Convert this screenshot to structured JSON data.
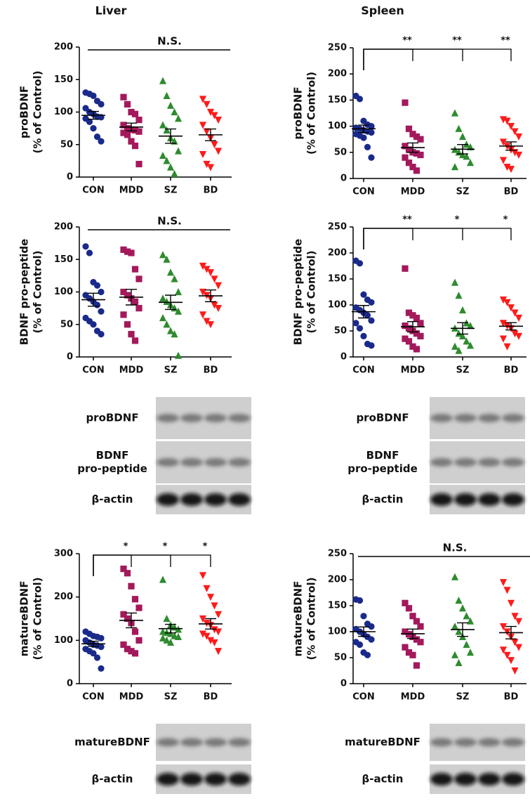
{
  "column_titles": [
    "Liver",
    "Spleen"
  ],
  "chart_data": [
    {
      "type": "dot",
      "ylabel": [
        "proBDNF",
        "(% of Control)"
      ],
      "categories": [
        "CON",
        "MDD",
        "SZ",
        "BD"
      ],
      "ylim": [
        0,
        200
      ],
      "yticks": [
        0,
        50,
        100,
        150,
        200
      ],
      "groups": [
        {
          "color": "#1a2a8a",
          "marker": "circle",
          "values": [
            130,
            128,
            125,
            117,
            112,
            106,
            100,
            97,
            93,
            92,
            90,
            85,
            75,
            62,
            55
          ],
          "mean": 95,
          "sem": 6
        },
        {
          "color": "#a3195b",
          "marker": "square",
          "values": [
            123,
            112,
            100,
            97,
            88,
            80,
            75,
            73,
            72,
            70,
            68,
            65,
            55,
            48,
            20
          ],
          "mean": 77,
          "sem": 6
        },
        {
          "color": "#2e8b2e",
          "marker": "triangle-up",
          "values": [
            148,
            125,
            110,
            100,
            90,
            80,
            72,
            60,
            55,
            40,
            33,
            25,
            15,
            5
          ],
          "mean": 63,
          "sem": 11
        },
        {
          "color": "#ff1a1a",
          "marker": "triangle-down",
          "values": [
            120,
            112,
            100,
            95,
            88,
            80,
            70,
            60,
            50,
            40,
            35,
            20,
            15
          ],
          "mean": 65,
          "sem": 9
        }
      ],
      "comparisons": [
        {
          "groups": [
            0,
            3
          ],
          "label": "N.S.",
          "style": "line"
        }
      ]
    },
    {
      "type": "dot",
      "ylabel": [
        "proBDNF",
        "(% of Control)"
      ],
      "categories": [
        "CON",
        "MDD",
        "SZ",
        "BD"
      ],
      "ylim": [
        0,
        250
      ],
      "yticks": [
        0,
        50,
        100,
        150,
        200,
        250
      ],
      "groups": [
        {
          "color": "#1a2a8a",
          "marker": "circle",
          "values": [
            158,
            152,
            110,
            103,
            100,
            97,
            95,
            92,
            90,
            88,
            85,
            82,
            78,
            60,
            40
          ],
          "mean": 95,
          "sem": 7
        },
        {
          "color": "#a3195b",
          "marker": "square",
          "values": [
            145,
            95,
            85,
            80,
            75,
            62,
            55,
            50,
            48,
            45,
            40,
            30,
            22,
            15
          ],
          "mean": 59,
          "sem": 9
        },
        {
          "color": "#2e8b2e",
          "marker": "triangle-up",
          "values": [
            125,
            95,
            80,
            65,
            60,
            55,
            50,
            45,
            42,
            30,
            22
          ],
          "mean": 56,
          "sem": 9
        },
        {
          "color": "#ff1a1a",
          "marker": "triangle-down",
          "values": [
            113,
            110,
            100,
            90,
            80,
            70,
            62,
            55,
            50,
            45,
            35,
            22,
            18
          ],
          "mean": 62,
          "sem": 8
        }
      ],
      "comparisons": [
        {
          "groups": [
            0,
            1
          ],
          "label": "**",
          "style": "bracket"
        },
        {
          "groups": [
            0,
            2
          ],
          "label": "**",
          "style": "bracket"
        },
        {
          "groups": [
            0,
            3
          ],
          "label": "**",
          "style": "bracket"
        }
      ]
    },
    {
      "type": "dot",
      "ylabel": [
        "BDNF pro-peptide",
        "(% of Control)"
      ],
      "categories": [
        "CON",
        "MDD",
        "SZ",
        "BD"
      ],
      "ylim": [
        0,
        200
      ],
      "yticks": [
        0,
        50,
        100,
        150,
        200
      ],
      "groups": [
        {
          "color": "#1a2a8a",
          "marker": "circle",
          "values": [
            170,
            160,
            115,
            110,
            100,
            95,
            90,
            85,
            80,
            70,
            60,
            55,
            50,
            40,
            35
          ],
          "mean": 88,
          "sem": 10
        },
        {
          "color": "#a3195b",
          "marker": "square",
          "values": [
            165,
            162,
            160,
            135,
            120,
            100,
            95,
            90,
            85,
            75,
            65,
            50,
            35,
            25
          ],
          "mean": 92,
          "sem": 12
        },
        {
          "color": "#2e8b2e",
          "marker": "triangle-up",
          "values": [
            157,
            150,
            130,
            120,
            100,
            90,
            85,
            80,
            75,
            70,
            60,
            50,
            40,
            35,
            2
          ],
          "mean": 84,
          "sem": 11
        },
        {
          "color": "#ff1a1a",
          "marker": "triangle-down",
          "values": [
            140,
            135,
            130,
            120,
            110,
            100,
            95,
            90,
            80,
            75,
            65,
            55,
            50
          ],
          "mean": 94,
          "sem": 9
        }
      ],
      "comparisons": [
        {
          "groups": [
            0,
            3
          ],
          "label": "N.S.",
          "style": "line"
        }
      ]
    },
    {
      "type": "dot",
      "ylabel": [
        "BDNF pro-peptide",
        "(% of Control)"
      ],
      "categories": [
        "CON",
        "MDD",
        "SZ",
        "BD"
      ],
      "ylim": [
        0,
        250
      ],
      "yticks": [
        0,
        50,
        100,
        150,
        200,
        250
      ],
      "groups": [
        {
          "color": "#1a2a8a",
          "marker": "circle",
          "values": [
            185,
            180,
            120,
            110,
            105,
            95,
            90,
            85,
            80,
            70,
            65,
            55,
            40,
            25,
            22
          ],
          "mean": 87,
          "sem": 12
        },
        {
          "color": "#a3195b",
          "marker": "square",
          "values": [
            170,
            85,
            80,
            75,
            65,
            60,
            55,
            50,
            45,
            40,
            35,
            30,
            20,
            15
          ],
          "mean": 58,
          "sem": 10
        },
        {
          "color": "#2e8b2e",
          "marker": "triangle-up",
          "values": [
            143,
            118,
            90,
            65,
            60,
            55,
            45,
            40,
            30,
            22,
            20,
            12
          ],
          "mean": 55,
          "sem": 11
        },
        {
          "color": "#ff1a1a",
          "marker": "triangle-down",
          "values": [
            110,
            105,
            95,
            85,
            75,
            65,
            60,
            55,
            45,
            40,
            35,
            20
          ],
          "mean": 59,
          "sem": 7
        }
      ],
      "comparisons": [
        {
          "groups": [
            0,
            1
          ],
          "label": "**",
          "style": "bracket"
        },
        {
          "groups": [
            0,
            2
          ],
          "label": "*",
          "style": "bracket"
        },
        {
          "groups": [
            0,
            3
          ],
          "label": "*",
          "style": "bracket"
        }
      ]
    },
    {
      "type": "dot",
      "ylabel": [
        "matureBDNF",
        "(% of Control)"
      ],
      "categories": [
        "CON",
        "MDD",
        "SZ",
        "BD"
      ],
      "ylim": [
        0,
        300
      ],
      "yticks": [
        0,
        100,
        200,
        300
      ],
      "groups": [
        {
          "color": "#1a2a8a",
          "marker": "circle",
          "values": [
            120,
            115,
            110,
            108,
            105,
            100,
            95,
            90,
            88,
            85,
            80,
            75,
            70,
            60,
            35
          ],
          "mean": 92,
          "sem": 6
        },
        {
          "color": "#a3195b",
          "marker": "square",
          "values": [
            265,
            255,
            225,
            195,
            175,
            160,
            150,
            140,
            120,
            100,
            90,
            80,
            75,
            70
          ],
          "mean": 146,
          "sem": 17
        },
        {
          "color": "#2e8b2e",
          "marker": "triangle-up",
          "values": [
            240,
            150,
            135,
            130,
            125,
            120,
            118,
            115,
            110,
            108,
            105,
            100,
            95
          ],
          "mean": 127,
          "sem": 10
        },
        {
          "color": "#ff1a1a",
          "marker": "triangle-down",
          "values": [
            250,
            220,
            200,
            180,
            160,
            150,
            140,
            135,
            125,
            120,
            115,
            110,
            100,
            95,
            75
          ],
          "mean": 138,
          "sem": 12
        }
      ],
      "comparisons": [
        {
          "groups": [
            0,
            1
          ],
          "label": "*",
          "style": "bracket"
        },
        {
          "groups": [
            0,
            2
          ],
          "label": "*",
          "style": "bracket"
        },
        {
          "groups": [
            0,
            3
          ],
          "label": "*",
          "style": "bracket"
        }
      ]
    },
    {
      "type": "dot",
      "ylabel": [
        "matureBDNF",
        "(% of Control)"
      ],
      "categories": [
        "CON",
        "MDD",
        "SZ",
        "BD"
      ],
      "ylim": [
        0,
        250
      ],
      "yticks": [
        0,
        50,
        100,
        150,
        200,
        250
      ],
      "groups": [
        {
          "color": "#1a2a8a",
          "marker": "circle",
          "values": [
            162,
            160,
            130,
            115,
            110,
            105,
            100,
            95,
            90,
            85,
            80,
            75,
            60,
            55
          ],
          "mean": 100,
          "sem": 9
        },
        {
          "color": "#a3195b",
          "marker": "square",
          "values": [
            155,
            145,
            130,
            120,
            110,
            100,
            95,
            90,
            85,
            80,
            70,
            60,
            55,
            35
          ],
          "mean": 96,
          "sem": 9
        },
        {
          "color": "#2e8b2e",
          "marker": "triangle-up",
          "values": [
            205,
            160,
            145,
            130,
            120,
            110,
            100,
            90,
            75,
            60,
            55,
            40
          ],
          "mean": 104,
          "sem": 13
        },
        {
          "color": "#ff1a1a",
          "marker": "triangle-down",
          "values": [
            195,
            180,
            155,
            130,
            120,
            110,
            100,
            90,
            80,
            70,
            65,
            55,
            45,
            25
          ],
          "mean": 98,
          "sem": 12
        }
      ],
      "comparisons": [
        {
          "groups": [
            0,
            3
          ],
          "label": "N.S.",
          "style": "line"
        }
      ]
    }
  ],
  "blots": [
    {
      "rows": [
        [
          "proBDNF"
        ],
        [
          "BDNF",
          "pro-peptide"
        ],
        [
          "β-actin"
        ]
      ]
    },
    {
      "rows": [
        [
          "proBDNF"
        ],
        [
          "BDNF",
          "pro-peptide"
        ],
        [
          "β-actin"
        ]
      ]
    },
    {
      "rows": [
        [
          "matureBDNF"
        ],
        [
          "β-actin"
        ]
      ]
    },
    {
      "rows": [
        [
          "matureBDNF"
        ],
        [
          "β-actin"
        ]
      ]
    }
  ]
}
